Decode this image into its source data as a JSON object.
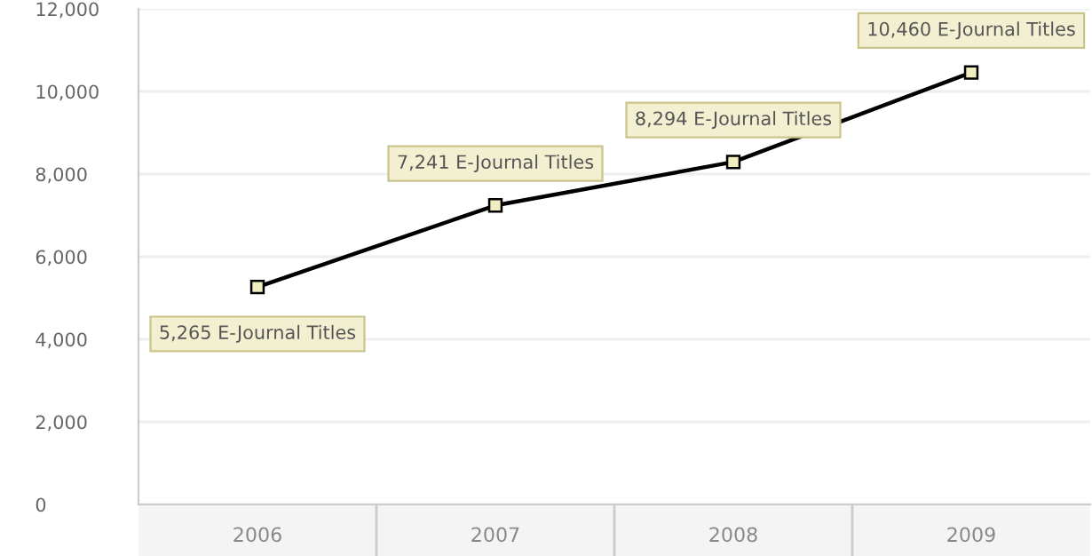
{
  "chart_data": {
    "type": "line",
    "categories": [
      "2006",
      "2007",
      "2008",
      "2009"
    ],
    "series": [
      {
        "color": "#000000",
        "values": [
          5265,
          7241,
          8294,
          10460
        ],
        "value_labels": [
          "5,265 E-Journal Titles",
          "7,241 E-Journal Titles",
          "8,294 E-Journal Titles",
          "10,460 E-Journal Titles"
        ]
      }
    ],
    "ylim": [
      0,
      12000
    ],
    "yticks": [
      0,
      {
        "value": 2000,
        "label": "2,000"
      },
      {
        "value": 4000,
        "label": "4,000"
      },
      {
        "value": 6000,
        "label": "6,000"
      },
      {
        "value": 8000,
        "label": "8,000"
      },
      {
        "value": 10000,
        "label": "10,000"
      },
      {
        "value": 12000,
        "label": "12,000"
      }
    ],
    "grid": "y",
    "marker": "square",
    "line_style": "solid"
  }
}
